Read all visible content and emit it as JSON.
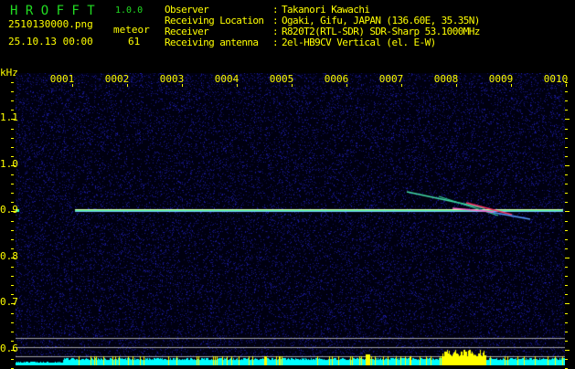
{
  "app": {
    "name": "H R O F F T",
    "version": "1.0.0"
  },
  "file": {
    "name": "2510130000.png",
    "datetime": "25.10.13 00:00"
  },
  "count": {
    "label": "meteor",
    "value": "61"
  },
  "info": [
    {
      "key": "Observer",
      "value": "Takanori Kawachi"
    },
    {
      "key": "Receiving Location",
      "value": "Ogaki, Gifu, JAPAN (136.60E, 35.35N)"
    },
    {
      "key": "Receiver",
      "value": "R820T2(RTL-SDR) SDR-Sharp 53.1000MHz"
    },
    {
      "key": "Receiving antenna",
      "value": "2el-HB9CV Vertical (el. E-W)"
    }
  ],
  "axis": {
    "unit": "kHz",
    "y_ticks": [
      "1.1",
      "1.0",
      "0.9",
      "0.8",
      "0.7",
      "0.6"
    ],
    "x_ticks": [
      "0001",
      "0002",
      "0003",
      "0004",
      "0005",
      "0006",
      "0007",
      "0008",
      "0009",
      "0010"
    ]
  },
  "colors": {
    "text": "#ffff00",
    "title": "#22dd22",
    "noise": "#1a1a8a",
    "carrier": "#66ffcc",
    "bar_low": "#00ffff",
    "bar_high": "#ffff00",
    "guide": "#a0a0a0"
  },
  "signal": {
    "carrier_khz": 0.9
  }
}
